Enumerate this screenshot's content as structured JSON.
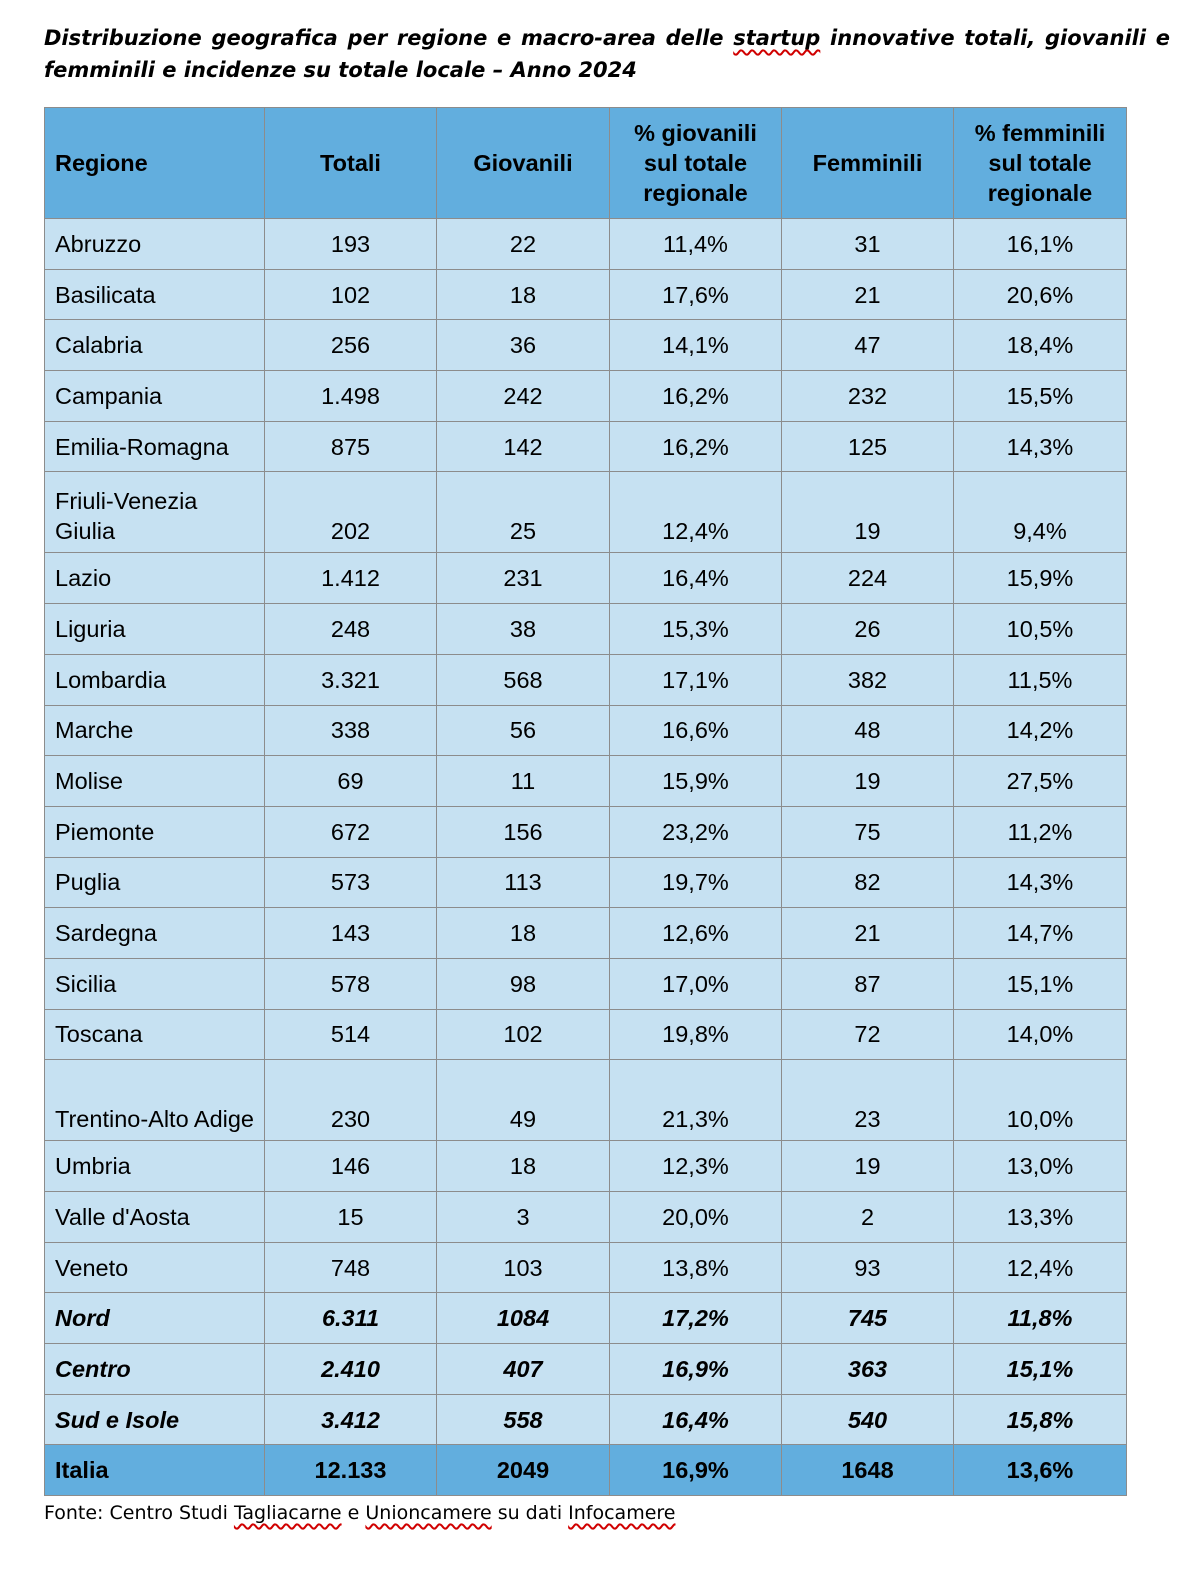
{
  "title": {
    "before": "Distribuzione geografica per regione e macro-area delle ",
    "flagged_word": "startup",
    "after": " innovative totali, giovanili e femminili e incidenze su totale locale – Anno 2024"
  },
  "table": {
    "headers": [
      "Regione",
      "Totali",
      "Giovanili",
      "% giovanili sul totale regionale",
      "Femminili",
      "% femminili sul totale regionale"
    ],
    "rows": [
      {
        "region": "Abruzzo",
        "totali": "193",
        "giovanili": "22",
        "pct_giovanili": "11,4%",
        "femminili": "31",
        "pct_femminili": "16,1%"
      },
      {
        "region": "Basilicata",
        "totali": "102",
        "giovanili": "18",
        "pct_giovanili": "17,6%",
        "femminili": "21",
        "pct_femminili": "20,6%"
      },
      {
        "region": "Calabria",
        "totali": "256",
        "giovanili": "36",
        "pct_giovanili": "14,1%",
        "femminili": "47",
        "pct_femminili": "18,4%"
      },
      {
        "region": "Campania",
        "totali": "1.498",
        "giovanili": "242",
        "pct_giovanili": "16,2%",
        "femminili": "232",
        "pct_femminili": "15,5%"
      },
      {
        "region": "Emilia-Romagna",
        "totali": "875",
        "giovanili": "142",
        "pct_giovanili": "16,2%",
        "femminili": "125",
        "pct_femminili": "14,3%"
      },
      {
        "region": "Friuli-Venezia Giulia",
        "totali": "202",
        "giovanili": "25",
        "pct_giovanili": "12,4%",
        "femminili": "19",
        "pct_femminili": "9,4%"
      },
      {
        "region": "Lazio",
        "totali": "1.412",
        "giovanili": "231",
        "pct_giovanili": "16,4%",
        "femminili": "224",
        "pct_femminili": "15,9%"
      },
      {
        "region": "Liguria",
        "totali": "248",
        "giovanili": "38",
        "pct_giovanili": "15,3%",
        "femminili": "26",
        "pct_femminili": "10,5%"
      },
      {
        "region": "Lombardia",
        "totali": "3.321",
        "giovanili": "568",
        "pct_giovanili": "17,1%",
        "femminili": "382",
        "pct_femminili": "11,5%"
      },
      {
        "region": "Marche",
        "totali": "338",
        "giovanili": "56",
        "pct_giovanili": "16,6%",
        "femminili": "48",
        "pct_femminili": "14,2%"
      },
      {
        "region": "Molise",
        "totali": "69",
        "giovanili": "11",
        "pct_giovanili": "15,9%",
        "femminili": "19",
        "pct_femminili": "27,5%"
      },
      {
        "region": "Piemonte",
        "totali": "672",
        "giovanili": "156",
        "pct_giovanili": "23,2%",
        "femminili": "75",
        "pct_femminili": "11,2%"
      },
      {
        "region": "Puglia",
        "totali": "573",
        "giovanili": "113",
        "pct_giovanili": "19,7%",
        "femminili": "82",
        "pct_femminili": "14,3%"
      },
      {
        "region": "Sardegna",
        "totali": "143",
        "giovanili": "18",
        "pct_giovanili": "12,6%",
        "femminili": "21",
        "pct_femminili": "14,7%"
      },
      {
        "region": "Sicilia",
        "totali": "578",
        "giovanili": "98",
        "pct_giovanili": "17,0%",
        "femminili": "87",
        "pct_femminili": "15,1%"
      },
      {
        "region": "Toscana",
        "totali": "514",
        "giovanili": "102",
        "pct_giovanili": "19,8%",
        "femminili": "72",
        "pct_femminili": "14,0%"
      },
      {
        "region": "Trentino-Alto Adige",
        "totali": "230",
        "giovanili": "49",
        "pct_giovanili": "21,3%",
        "femminili": "23",
        "pct_femminili": "10,0%"
      },
      {
        "region": "Umbria",
        "totali": "146",
        "giovanili": "18",
        "pct_giovanili": "12,3%",
        "femminili": "19",
        "pct_femminili": "13,0%"
      },
      {
        "region": "Valle d'Aosta",
        "totali": "15",
        "giovanili": "3",
        "pct_giovanili": "20,0%",
        "femminili": "2",
        "pct_femminili": "13,3%"
      },
      {
        "region": "Veneto",
        "totali": "748",
        "giovanili": "103",
        "pct_giovanili": "13,8%",
        "femminili": "93",
        "pct_femminili": "12,4%"
      },
      {
        "region": "Nord",
        "totali": "6.311",
        "giovanili": "1084",
        "pct_giovanili": "17,2%",
        "femminili": "745",
        "pct_femminili": "11,8%"
      },
      {
        "region": "Centro",
        "totali": "2.410",
        "giovanili": "407",
        "pct_giovanili": "16,9%",
        "femminili": "363",
        "pct_femminili": "15,1%"
      },
      {
        "region": "Sud e Isole",
        "totali": "3.412",
        "giovanili": "558",
        "pct_giovanili": "16,4%",
        "femminili": "540",
        "pct_femminili": "15,8%"
      },
      {
        "region": "Italia",
        "totali": "12.133",
        "giovanili": "2049",
        "pct_giovanili": "16,9%",
        "femminili": "1648",
        "pct_femminili": "13,6%"
      }
    ]
  },
  "source": {
    "prefix": "Fonte: Centro Studi ",
    "word1": "Tagliacarne",
    "mid1": " e ",
    "word2": "Unioncamere",
    "mid2": " su dati ",
    "word3": "Infocamere"
  },
  "colors": {
    "header_fill": "#62aede",
    "body_fill": "#c6e1f2",
    "border": "#8c8c8c",
    "spellcheck_underline": "#d00000"
  }
}
